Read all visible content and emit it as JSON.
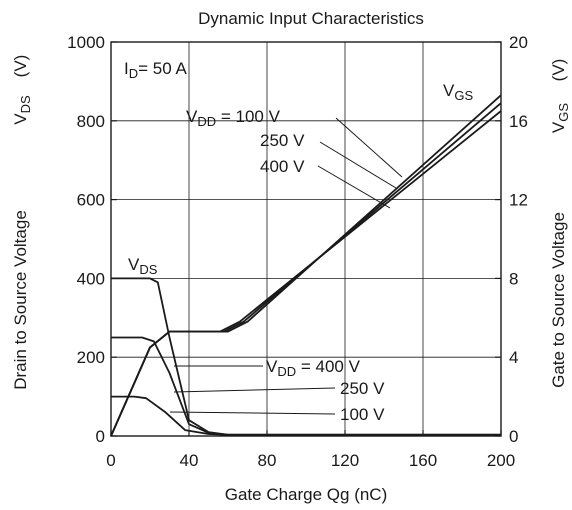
{
  "chart_data": {
    "type": "line",
    "title": "Dynamic Input Characteristics",
    "xlabel": "Gate Charge    Qg   (nC)",
    "ylabel_left": {
      "main": "Drain to Source Voltage",
      "symbol": "V",
      "subscript": "DS",
      "unit": "(V)"
    },
    "ylabel_right": {
      "main": "Gate to Source Voltage",
      "symbol": "V",
      "subscript": "GS",
      "unit": "(V)"
    },
    "xlim": [
      0,
      200
    ],
    "ylim_left": [
      0,
      1000
    ],
    "ylim_right": [
      0,
      20
    ],
    "x_ticks": [
      "0",
      "40",
      "80",
      "120",
      "160",
      "200"
    ],
    "y_left_ticks": [
      "0",
      "200",
      "400",
      "600",
      "800",
      "1000"
    ],
    "y_right_ticks": [
      "0",
      "4",
      "8",
      "12",
      "16",
      "20"
    ],
    "grid": true,
    "annotations": {
      "condition": {
        "prefix": "I",
        "sub": "D",
        "suffix": "= 50 A"
      },
      "vds_label": {
        "prefix": "V",
        "sub": "DS"
      },
      "vgs_label": {
        "prefix": "V",
        "sub": "GS"
      },
      "vgs_series_labels": [
        {
          "prefix": "V",
          "sub": "DD",
          "suffix": " = 100 V"
        },
        {
          "text": "250 V"
        },
        {
          "text": "400 V"
        }
      ],
      "vds_series_labels": [
        {
          "prefix": "V",
          "sub": "DD",
          "suffix": " = 400 V"
        },
        {
          "text": "250 V"
        },
        {
          "text": "100 V"
        }
      ]
    },
    "series": [
      {
        "name": "VGS, VDD = 100 V",
        "axis": "right",
        "x": [
          0,
          20,
          30,
          56,
          58,
          66,
          200
        ],
        "y": [
          0,
          4.5,
          5.3,
          5.3,
          5.4,
          5.8,
          16.5
        ]
      },
      {
        "name": "VGS, VDD = 250 V",
        "axis": "right",
        "x": [
          0,
          20,
          30,
          58,
          60,
          68,
          200
        ],
        "y": [
          0,
          4.5,
          5.3,
          5.3,
          5.4,
          5.8,
          16.9
        ]
      },
      {
        "name": "VGS, VDD = 400 V",
        "axis": "right",
        "x": [
          0,
          20,
          30,
          60,
          62,
          70,
          200
        ],
        "y": [
          0,
          4.5,
          5.3,
          5.3,
          5.4,
          5.8,
          17.3
        ]
      },
      {
        "name": "VDS, VDD = 400 V",
        "axis": "left",
        "x": [
          0,
          20,
          24,
          30,
          40,
          50,
          60,
          200
        ],
        "y": [
          400,
          400,
          390,
          250,
          40,
          10,
          3,
          3
        ]
      },
      {
        "name": "VDS, VDD = 250 V",
        "axis": "left",
        "x": [
          0,
          16,
          22,
          30,
          40,
          50,
          60,
          200
        ],
        "y": [
          250,
          250,
          240,
          160,
          30,
          8,
          3,
          3
        ]
      },
      {
        "name": "VDS, VDD = 100 V",
        "axis": "left",
        "x": [
          0,
          12,
          18,
          28,
          38,
          50,
          60,
          200
        ],
        "y": [
          100,
          100,
          96,
          60,
          15,
          5,
          3,
          3
        ]
      }
    ]
  }
}
